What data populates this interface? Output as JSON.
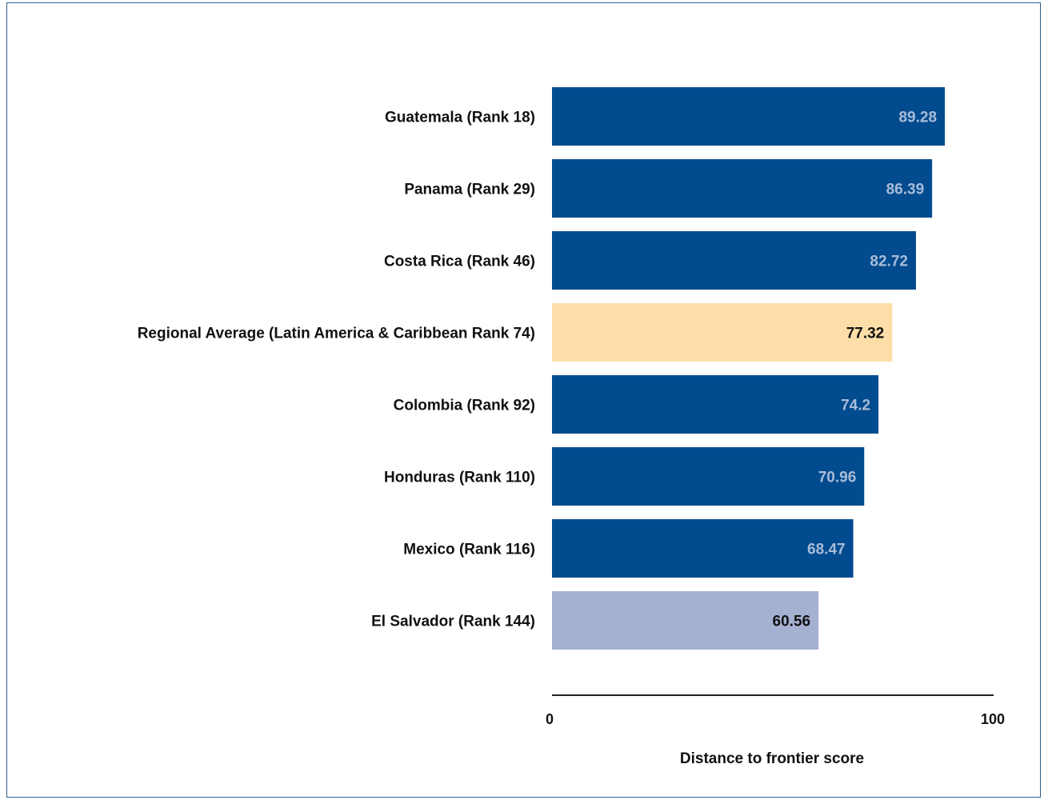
{
  "chart_data": {
    "type": "bar",
    "orientation": "horizontal",
    "categories": [
      "Guatemala (Rank 18)",
      "Panama (Rank 29)",
      "Costa Rica (Rank 46)",
      "Regional Average (Latin America & Caribbean Rank 74)",
      "Colombia (Rank 92)",
      "Honduras (Rank 110)",
      "Mexico (Rank 116)",
      "El Salvador (Rank 144)"
    ],
    "values": [
      89.28,
      86.39,
      82.72,
      77.32,
      74.2,
      70.96,
      68.47,
      60.56
    ],
    "value_labels": [
      "89.28",
      "86.39",
      "82.72",
      "77.32",
      "74.2",
      "70.96",
      "68.47",
      "60.56"
    ],
    "bar_colors": [
      "#024b8f",
      "#024b8f",
      "#024b8f",
      "#fddea8",
      "#024b8f",
      "#024b8f",
      "#024b8f",
      "#a5b1d1"
    ],
    "label_colors": [
      "#a9bcd8",
      "#a9bcd8",
      "#a9bcd8",
      "#111111",
      "#a9bcd8",
      "#a9bcd8",
      "#a9bcd8",
      "#111111"
    ],
    "xlim": [
      0,
      100
    ],
    "x_ticks": [
      "0",
      "100"
    ],
    "xlabel": "Distance to frontier score",
    "ylabel": "",
    "title": "",
    "grid": false,
    "legend": "none"
  }
}
